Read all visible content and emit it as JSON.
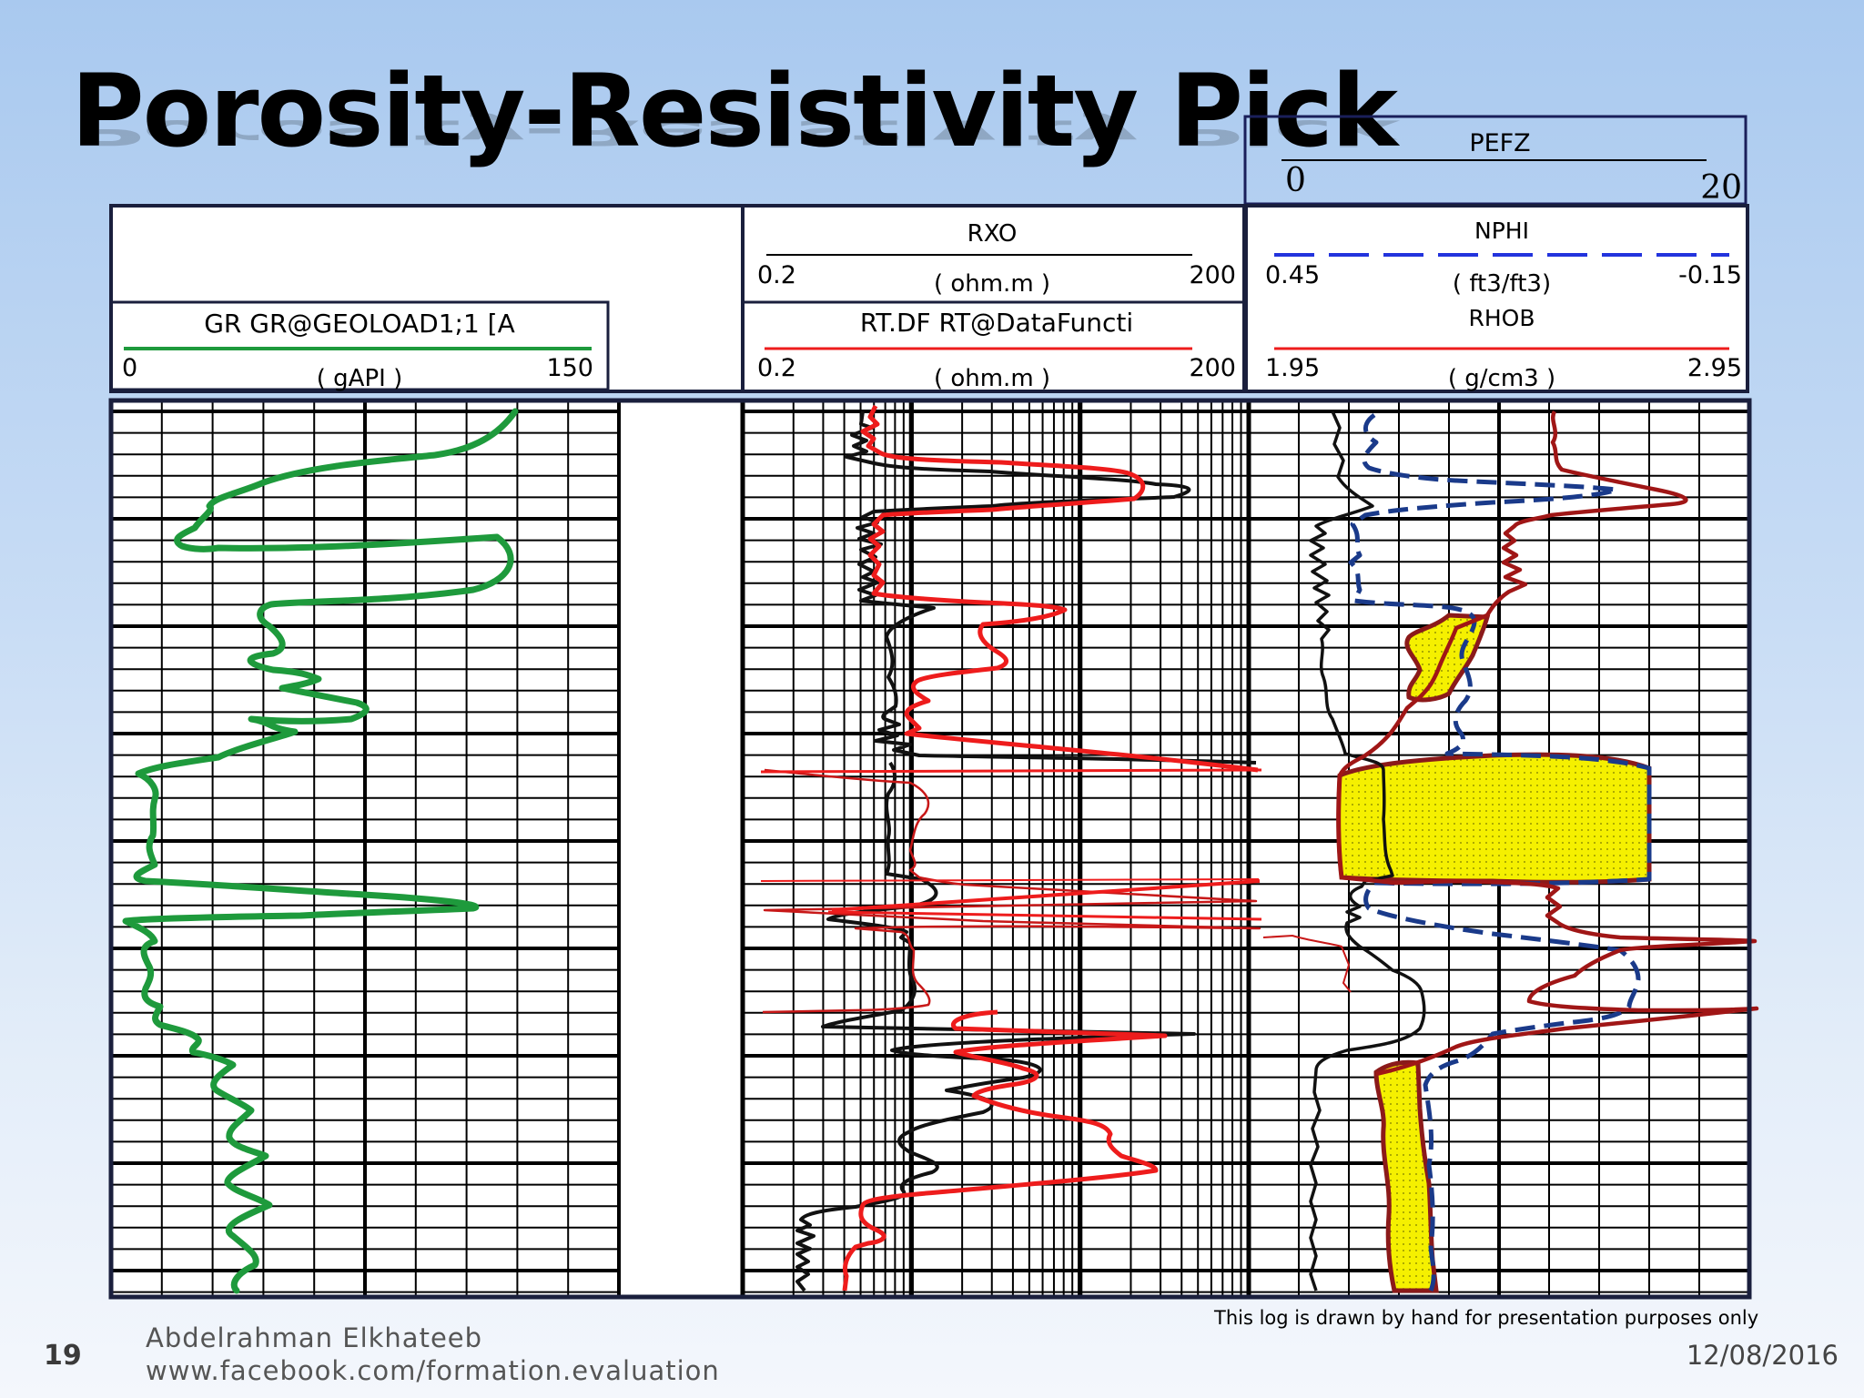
{
  "slide": {
    "title": "Porosity-Resistivity Pick",
    "page_number": "19",
    "author": "Abdelrahman  Elkhateeb",
    "url": "www.facebook.com/formation.evaluation",
    "date": "12/08/2016",
    "note": "This log is drawn by hand for presentation purposes only"
  },
  "header": {
    "pefz": {
      "name": "PEFZ",
      "min": "0",
      "max": "20"
    },
    "gr": {
      "name": "GR GR@GEOLOAD1;1 [A",
      "min": "0",
      "unit": "( gAPI )",
      "max": "150"
    },
    "rxo": {
      "name": "RXO",
      "min": "0.2",
      "unit": "( ohm.m )",
      "max": "200"
    },
    "rt": {
      "name": "RT.DF RT@DataFuncti",
      "min": "0.2",
      "unit": "( ohm.m )",
      "max": "200"
    },
    "nphi": {
      "name": "NPHI",
      "min": "0.45",
      "unit": "( ft3/ft3)",
      "max": "-0.15"
    },
    "rhob": {
      "name": "RHOB",
      "min": "1.95",
      "unit": "( g/cm3 )",
      "max": "2.95"
    }
  },
  "colors": {
    "gr": "#1e9a3c",
    "rt": "#ee1c1c",
    "rxo": "#111111",
    "nphi": "#1a3a8a",
    "nphi_header": "#2233dd",
    "rhob": "#a01616",
    "fill": "#f5f000",
    "frame": "#1a1f3d"
  }
}
